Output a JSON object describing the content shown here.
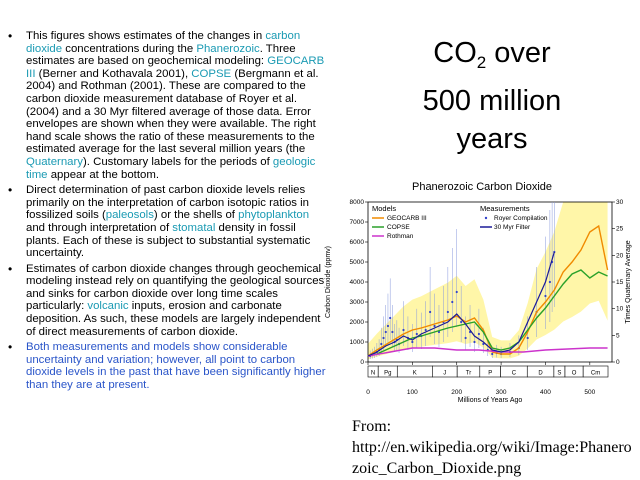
{
  "slide": {
    "title_main": "CO",
    "title_sub": "2",
    "title_rest": " over",
    "title_line2": "500 million",
    "title_line3": "years",
    "credit_label": "From:",
    "credit_url": "http://en.wikipedia.org/wiki/Image:Phanerozoic_Carbon_Dioxide.png"
  },
  "bullets": [
    {
      "parts": [
        {
          "t": "This figures shows estimates of the changes in "
        },
        {
          "t": "carbon dioxide",
          "link": true
        },
        {
          "t": " concentrations during the "
        },
        {
          "t": "Phanerozoic",
          "link": true
        },
        {
          "t": ". Three estimates are based on geochemical modeling: "
        },
        {
          "t": "GEOCARB III",
          "link": true
        },
        {
          "t": " (Berner and Kothavala 2001), "
        },
        {
          "t": "COPSE",
          "link": true
        },
        {
          "t": " (Bergmann et al. 2004) and Rothman (2001). These are compared to the carbon dioxide measurement database of Royer et al. (2004) and a 30 Myr filtered average of those data. Error envelopes are shown when they were available. The right hand scale shows the ratio of these measurements to the estimated average for the last several million years (the "
        },
        {
          "t": "Quaternary",
          "link": true
        },
        {
          "t": "). Customary labels for the periods of "
        },
        {
          "t": "geologic time",
          "link": true
        },
        {
          "t": " appear at the bottom."
        }
      ]
    },
    {
      "parts": [
        {
          "t": "Direct determination of past carbon dioxide levels relies primarily on the interpretation of carbon isotopic ratios in fossilized soils ("
        },
        {
          "t": "paleosols",
          "link": true
        },
        {
          "t": ") or the shells of "
        },
        {
          "t": "phytoplankton",
          "link": true
        },
        {
          "t": " and through interpretation of "
        },
        {
          "t": "stomatal",
          "link": true
        },
        {
          "t": " density in fossil plants. Each of these is subject to substantial systematic uncertainty."
        }
      ]
    },
    {
      "parts": [
        {
          "t": "Estimates of carbon dioxide changes through geochemical modeling instead rely on quantifying the geological sources and sinks for carbon dioxide over long time scales particularly: "
        },
        {
          "t": "volcanic",
          "link": true
        },
        {
          "t": " inputs, erosion and carbonate deposition. As such, these models are largely independent of direct measurements of carbon dioxide."
        }
      ]
    },
    {
      "blue": true,
      "parts": [
        {
          "t": "Both measurements and models show considerable uncertainty and variation; however, all point to carbon dioxide levels in the past that have been significantly higher than they are at present."
        }
      ]
    }
  ],
  "chart_data": {
    "type": "line",
    "title": "Phanerozoic Carbon Dioxide",
    "xlabel": "Millions of Years Ago",
    "ylabel": "Carbon Dioxide (ppmv)",
    "ylabel_right": "Times Quaternary Average",
    "xlim": [
      0,
      550
    ],
    "ylim": [
      0,
      8000
    ],
    "ylim_right": [
      0,
      30
    ],
    "x_ticks": [
      0,
      100,
      200,
      300,
      400,
      500
    ],
    "y_ticks": [
      0,
      1000,
      2000,
      3000,
      4000,
      5000,
      6000,
      7000,
      8000
    ],
    "y_ticks_right": [
      0,
      5,
      10,
      15,
      20,
      25,
      30
    ],
    "legend": {
      "models_title": "Models",
      "measurements_title": "Measurements",
      "placement": "top"
    },
    "periods": [
      {
        "label": "N",
        "start": 0,
        "end": 23
      },
      {
        "label": "Pg",
        "start": 23,
        "end": 66
      },
      {
        "label": "K",
        "start": 66,
        "end": 145
      },
      {
        "label": "J",
        "start": 145,
        "end": 201
      },
      {
        "label": "Tr",
        "start": 201,
        "end": 252
      },
      {
        "label": "P",
        "start": 252,
        "end": 299
      },
      {
        "label": "C",
        "start": 299,
        "end": 359
      },
      {
        "label": "D",
        "start": 359,
        "end": 419
      },
      {
        "label": "S",
        "start": 419,
        "end": 444
      },
      {
        "label": "O",
        "start": 444,
        "end": 485
      },
      {
        "label": "Cm",
        "start": 485,
        "end": 541
      }
    ],
    "series": [
      {
        "name": "GEOCARB III",
        "color": "#f08a00",
        "x": [
          0,
          20,
          50,
          80,
          100,
          120,
          150,
          180,
          200,
          220,
          240,
          260,
          280,
          300,
          320,
          340,
          360,
          380,
          400,
          420,
          440,
          460,
          480,
          500,
          520,
          540
        ],
        "y": [
          300,
          600,
          1000,
          1400,
          1600,
          1700,
          1900,
          2100,
          2300,
          2000,
          2200,
          1600,
          500,
          400,
          400,
          700,
          1500,
          2500,
          3000,
          3600,
          4500,
          5000,
          5600,
          6500,
          6800,
          4600
        ]
      },
      {
        "name": "COPSE",
        "color": "#2aa12a",
        "x": [
          0,
          20,
          50,
          80,
          100,
          120,
          150,
          180,
          200,
          220,
          240,
          260,
          280,
          300,
          320,
          340,
          360,
          380,
          400,
          420,
          440,
          460,
          480,
          500,
          520,
          540
        ],
        "y": [
          300,
          400,
          700,
          1000,
          1200,
          1300,
          1500,
          1700,
          1800,
          1900,
          2000,
          1500,
          700,
          600,
          700,
          1000,
          1600,
          2200,
          2700,
          3300,
          3900,
          4400,
          4600,
          4200,
          4500,
          4300
        ]
      },
      {
        "name": "Rothman",
        "color": "#cc33cc",
        "x": [
          0,
          50,
          100,
          150,
          200,
          250,
          300,
          350,
          400,
          450,
          500,
          540
        ],
        "y": [
          300,
          500,
          700,
          700,
          600,
          600,
          500,
          500,
          600,
          650,
          700,
          700
        ]
      },
      {
        "name": "30 Myr Filter",
        "color": "#1a1a99",
        "x": [
          0,
          20,
          40,
          60,
          80,
          100,
          120,
          140,
          160,
          180,
          200,
          220,
          240,
          260,
          280,
          300,
          320,
          340,
          360,
          380,
          400,
          420
        ],
        "y": [
          300,
          500,
          800,
          1000,
          1300,
          1100,
          1400,
          1600,
          1800,
          2000,
          2400,
          1900,
          1300,
          1000,
          600,
          500,
          600,
          1000,
          2000,
          3000,
          4000,
          5500
        ]
      }
    ],
    "measurements": {
      "name": "Royer Compilation",
      "color": "#3344cc",
      "x": [
        5,
        10,
        15,
        20,
        25,
        30,
        35,
        40,
        45,
        50,
        55,
        60,
        65,
        70,
        80,
        90,
        100,
        110,
        120,
        130,
        140,
        150,
        160,
        170,
        180,
        190,
        200,
        210,
        220,
        230,
        240,
        250,
        260,
        270,
        280,
        290,
        300,
        320,
        340,
        360,
        380,
        400,
        410,
        415,
        420
      ],
      "y": [
        300,
        350,
        400,
        500,
        600,
        900,
        1200,
        1500,
        1800,
        2200,
        1500,
        1000,
        1100,
        900,
        1600,
        1200,
        1000,
        1400,
        1300,
        1600,
        2500,
        1800,
        1500,
        2000,
        2500,
        3000,
        3500,
        2000,
        1200,
        1500,
        1000,
        1400,
        900,
        600,
        400,
        450,
        400,
        500,
        700,
        1200,
        2500,
        3300,
        4000,
        5000,
        5500
      ]
    }
  }
}
